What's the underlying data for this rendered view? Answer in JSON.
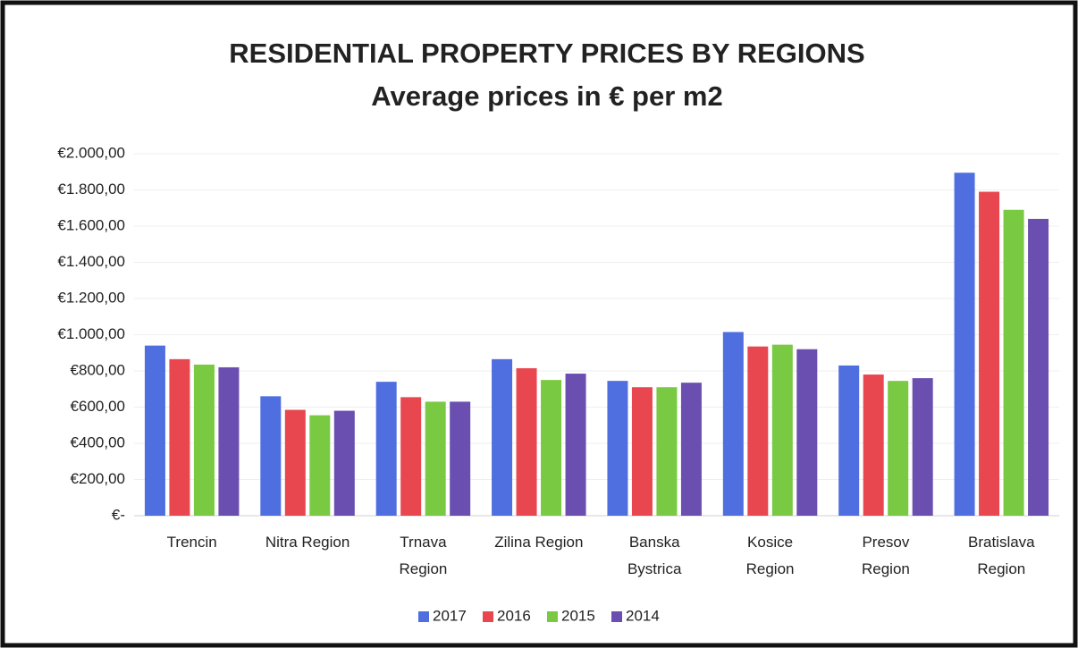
{
  "chart_data": {
    "type": "bar",
    "title": "RESIDENTIAL PROPERTY PRICES BY REGIONS",
    "subtitle": "Average prices in € per m2",
    "categories": [
      "Trencin",
      "Nitra Region",
      "Trnava\nRegion",
      "Zilina Region",
      "Banska\nBystrica",
      "Kosice\nRegion",
      "Presov\nRegion",
      "Bratislava\nRegion"
    ],
    "series": [
      {
        "name": "2017",
        "color": "#4f6fe0",
        "values": [
          940,
          660,
          740,
          865,
          745,
          1015,
          830,
          1895
        ]
      },
      {
        "name": "2016",
        "color": "#e8474f",
        "values": [
          865,
          585,
          655,
          815,
          710,
          935,
          780,
          1790
        ]
      },
      {
        "name": "2015",
        "color": "#7ac943",
        "values": [
          835,
          555,
          630,
          750,
          710,
          945,
          745,
          1690
        ]
      },
      {
        "name": "2014",
        "color": "#6a4fb0",
        "values": [
          820,
          580,
          630,
          785,
          735,
          920,
          760,
          1640
        ]
      }
    ],
    "ylim": [
      0,
      2000
    ],
    "yticks": [
      {
        "value": 0,
        "label": "€-"
      },
      {
        "value": 200,
        "label": "€200,00"
      },
      {
        "value": 400,
        "label": "€400,00"
      },
      {
        "value": 600,
        "label": "€600,00"
      },
      {
        "value": 800,
        "label": "€800,00"
      },
      {
        "value": 1000,
        "label": "€1.000,00"
      },
      {
        "value": 1200,
        "label": "€1.200,00"
      },
      {
        "value": 1400,
        "label": "€1.400,00"
      },
      {
        "value": 1600,
        "label": "€1.600,00"
      },
      {
        "value": 1800,
        "label": "€1.800,00"
      },
      {
        "value": 2000,
        "label": "€2.000,00"
      }
    ],
    "grid": true,
    "legend": "bottom"
  }
}
